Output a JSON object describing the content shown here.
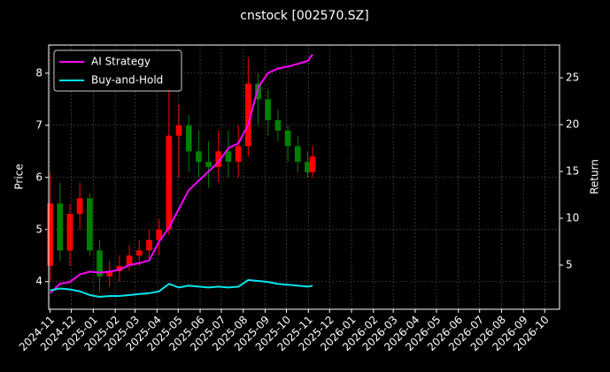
{
  "chart_data": {
    "type": "candlestick",
    "title": "cnstock [002570.SZ]",
    "ylabel": "Price",
    "y2label": "Return",
    "x": [
      "2024-11-01",
      "2024-11-15",
      "2024-11-29",
      "2024-12-13",
      "2024-12-27",
      "2025-01-10",
      "2025-01-24",
      "2025-02-07",
      "2025-02-21",
      "2025-03-07",
      "2025-03-21",
      "2025-04-04",
      "2025-04-18",
      "2025-05-02",
      "2025-05-16",
      "2025-05-30",
      "2025-06-13",
      "2025-06-27",
      "2025-07-11",
      "2025-07-25",
      "2025-08-08",
      "2025-08-22",
      "2025-09-05",
      "2025-09-19",
      "2025-10-03",
      "2025-10-17",
      "2025-10-31",
      "2025-11-07"
    ],
    "open": [
      4.3,
      5.5,
      4.6,
      5.3,
      5.6,
      4.6,
      4.1,
      4.2,
      4.3,
      4.5,
      4.6,
      4.8,
      5.0,
      6.8,
      7.0,
      6.5,
      6.3,
      6.2,
      6.5,
      6.3,
      6.6,
      7.8,
      7.5,
      7.1,
      6.9,
      6.6,
      6.3,
      6.1
    ],
    "high": [
      6.1,
      5.9,
      5.5,
      5.9,
      5.7,
      4.8,
      4.4,
      4.5,
      4.7,
      4.8,
      5.0,
      5.2,
      7.7,
      7.4,
      7.2,
      6.9,
      6.7,
      6.9,
      6.9,
      7.0,
      8.3,
      8.0,
      7.7,
      7.3,
      7.0,
      6.8,
      6.5,
      6.6
    ],
    "low": [
      4.0,
      4.4,
      4.3,
      5.0,
      4.5,
      3.8,
      3.9,
      4.0,
      4.2,
      4.3,
      4.4,
      4.5,
      4.9,
      6.0,
      6.1,
      6.0,
      5.8,
      5.9,
      6.0,
      6.0,
      6.4,
      7.0,
      6.8,
      6.7,
      6.3,
      6.1,
      6.0,
      6.0
    ],
    "close": [
      5.5,
      4.6,
      5.3,
      5.6,
      4.6,
      4.1,
      4.2,
      4.3,
      4.5,
      4.6,
      4.8,
      5.0,
      6.8,
      7.0,
      6.5,
      6.3,
      6.2,
      6.5,
      6.3,
      6.6,
      7.8,
      7.5,
      7.1,
      6.9,
      6.6,
      6.3,
      6.1,
      6.4
    ],
    "up_color": "#ff0000",
    "down_color": "#008000",
    "series": [
      {
        "name": "AI Strategy",
        "color": "#ff00ff",
        "axis": "y2",
        "values": [
          2.0,
          3.0,
          3.2,
          4.0,
          4.3,
          4.2,
          4.3,
          4.5,
          5.0,
          5.2,
          5.5,
          7.5,
          9.0,
          11.0,
          13.0,
          14.0,
          15.0,
          16.0,
          17.5,
          18.0,
          20.0,
          24.0,
          25.5,
          26.0,
          26.2,
          26.5,
          26.8,
          27.5
        ]
      },
      {
        "name": "Buy-and-Hold",
        "color": "#00e5ee",
        "axis": "y2",
        "values": [
          2.3,
          2.5,
          2.4,
          2.2,
          1.8,
          1.6,
          1.7,
          1.7,
          1.8,
          1.9,
          2.0,
          2.2,
          3.0,
          2.6,
          2.8,
          2.7,
          2.6,
          2.7,
          2.6,
          2.7,
          3.4,
          3.3,
          3.2,
          3.0,
          2.9,
          2.8,
          2.7,
          2.8
        ]
      }
    ],
    "xlim": [
      "2024-10-30",
      "2026-10-22"
    ],
    "xticks": [
      {
        "value": "2024-11-01",
        "label": "2024-11"
      },
      {
        "value": "2024-12-01",
        "label": "2024-12"
      },
      {
        "value": "2025-01-01",
        "label": "2025-01"
      },
      {
        "value": "2025-02-01",
        "label": "2025-02"
      },
      {
        "value": "2025-03-01",
        "label": "2025-03"
      },
      {
        "value": "2025-04-01",
        "label": "2025-04"
      },
      {
        "value": "2025-05-01",
        "label": "2025-05"
      },
      {
        "value": "2025-06-01",
        "label": "2025-06"
      },
      {
        "value": "2025-07-01",
        "label": "2025-07"
      },
      {
        "value": "2025-08-01",
        "label": "2025-08"
      },
      {
        "value": "2025-09-01",
        "label": "2025-09"
      },
      {
        "value": "2025-10-01",
        "label": "2025-10"
      },
      {
        "value": "2025-11-01",
        "label": "2025-11"
      },
      {
        "value": "2025-12-01",
        "label": "2025-12"
      },
      {
        "value": "2026-01-01",
        "label": "2026-01"
      },
      {
        "value": "2026-02-01",
        "label": "2026-02"
      },
      {
        "value": "2026-03-01",
        "label": "2026-03"
      },
      {
        "value": "2026-04-01",
        "label": "2026-04"
      },
      {
        "value": "2026-05-01",
        "label": "2026-05"
      },
      {
        "value": "2026-06-01",
        "label": "2026-06"
      },
      {
        "value": "2026-07-01",
        "label": "2026-07"
      },
      {
        "value": "2026-08-01",
        "label": "2026-08"
      },
      {
        "value": "2026-09-01",
        "label": "2026-09"
      },
      {
        "value": "2026-10-01",
        "label": "2026-10"
      }
    ],
    "ylim": [
      3.47,
      8.54
    ],
    "yticks": [
      4,
      5,
      6,
      7,
      8
    ],
    "y2lim": [
      0.28,
      28.5
    ],
    "y2ticks": [
      5,
      10,
      15,
      20,
      25
    ],
    "grid": true,
    "legend": "upper left"
  }
}
